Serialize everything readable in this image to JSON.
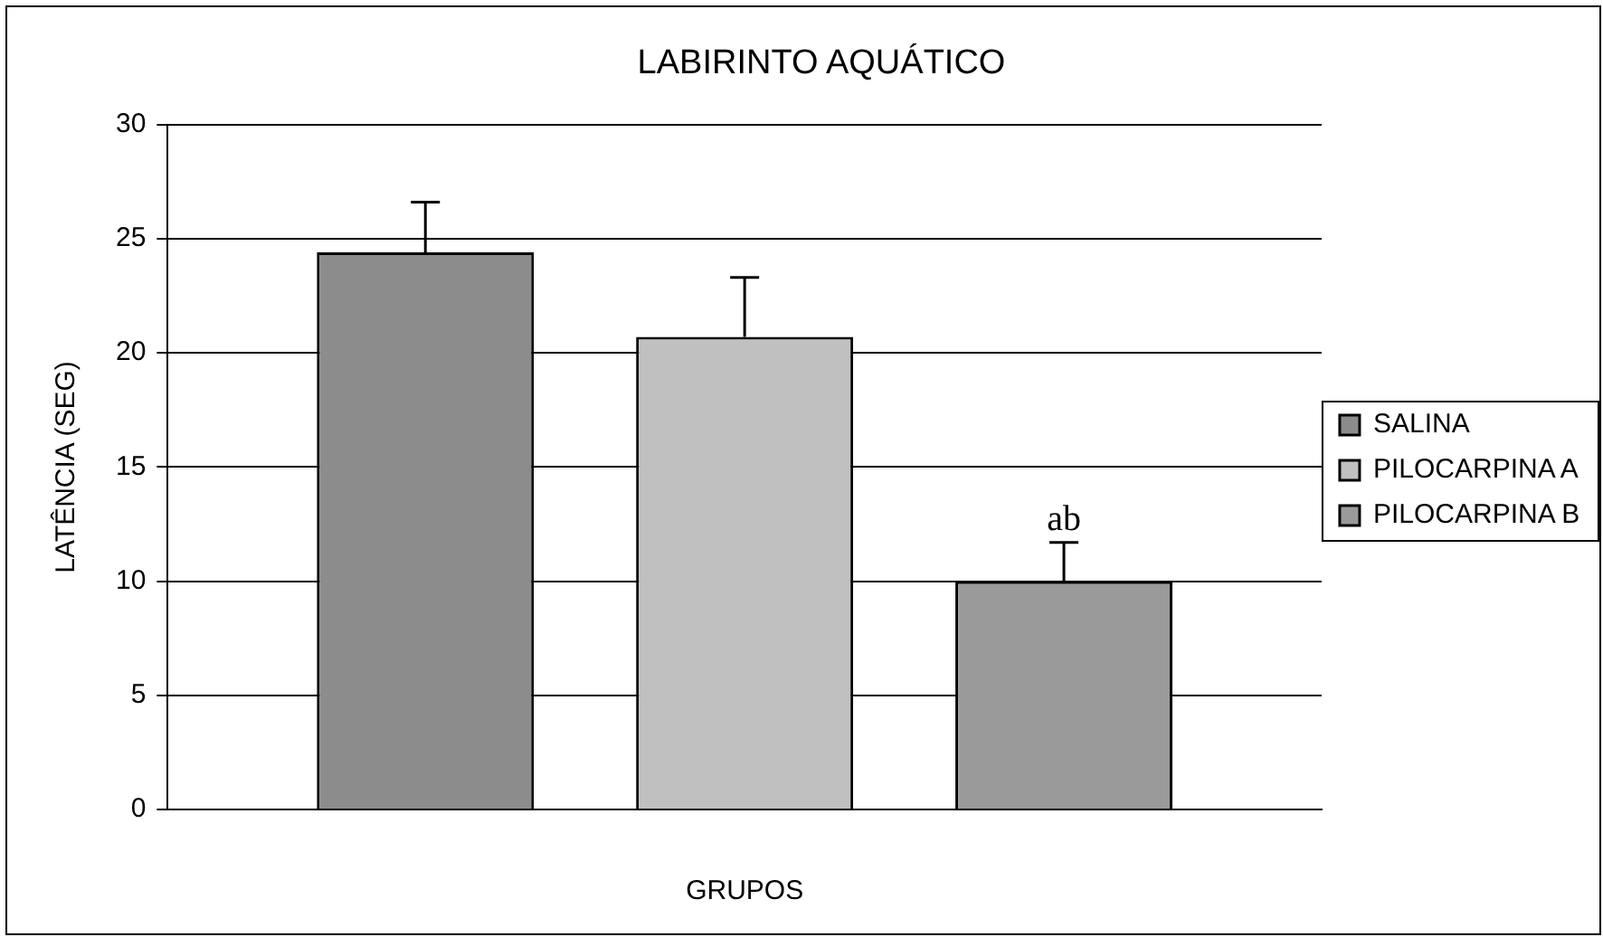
{
  "chart_data": {
    "type": "bar",
    "title": "LABIRINTO AQUÁTICO",
    "xlabel": "GRUPOS",
    "ylabel": "LATÊNCIA (SEG)",
    "categories": [
      null
    ],
    "series": [
      {
        "name": "SALINA",
        "color": "#8c8c8c",
        "values": [
          24.4
        ],
        "errors": [
          2.2
        ]
      },
      {
        "name": "PILOCARPINA A",
        "color": "#c0c0c0",
        "values": [
          20.7
        ],
        "errors": [
          2.6
        ]
      },
      {
        "name": "PILOCARPINA B",
        "color": "#9a9a9a",
        "values": [
          10.0
        ],
        "errors": [
          1.7
        ]
      }
    ],
    "ylim": [
      0,
      30
    ],
    "yticks": [
      0,
      5,
      10,
      15,
      20,
      25,
      30
    ],
    "grid": "y",
    "legend": "right",
    "annotations": [
      "ab"
    ]
  }
}
